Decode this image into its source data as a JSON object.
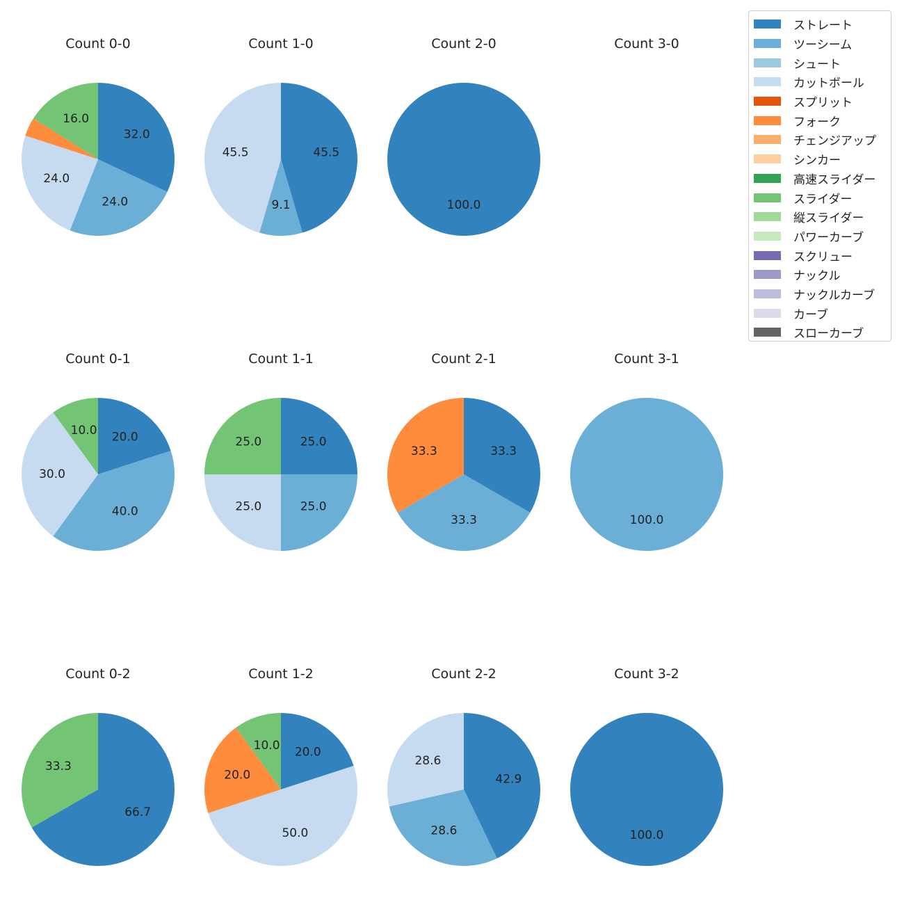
{
  "chart_data": {
    "type": "pie",
    "layout": "small multiples, 3 rows x 4 columns",
    "legend": [
      {
        "name": "ストレート",
        "color": "#3182bd"
      },
      {
        "name": "ツーシーム",
        "color": "#6baed6"
      },
      {
        "name": "シュート",
        "color": "#9ecae1"
      },
      {
        "name": "カットボール",
        "color": "#c6dbef"
      },
      {
        "name": "スプリット",
        "color": "#e6550d"
      },
      {
        "name": "フォーク",
        "color": "#fd8d3c"
      },
      {
        "name": "チェンジアップ",
        "color": "#fdae6b"
      },
      {
        "name": "シンカー",
        "color": "#fdd0a2"
      },
      {
        "name": "高速スライダー",
        "color": "#31a354"
      },
      {
        "name": "スライダー",
        "color": "#74c476"
      },
      {
        "name": "縦スライダー",
        "color": "#a1d99b"
      },
      {
        "name": "パワーカーブ",
        "color": "#c7e9c0"
      },
      {
        "name": "スクリュー",
        "color": "#756bb1"
      },
      {
        "name": "ナックル",
        "color": "#9e9ac8"
      },
      {
        "name": "ナックルカーブ",
        "color": "#bcbddc"
      },
      {
        "name": "カーブ",
        "color": "#dadaeb"
      },
      {
        "name": "スローカーブ",
        "color": "#636363"
      }
    ],
    "charts": [
      {
        "title": "Count 0-0",
        "slices": [
          {
            "label": "ストレート",
            "value": 32.0,
            "text": "32.0"
          },
          {
            "label": "ツーシーム",
            "value": 24.0,
            "text": "24.0"
          },
          {
            "label": "カットボール",
            "value": 24.0,
            "text": "24.0"
          },
          {
            "label": "フォーク",
            "value": 4.0,
            "text": ""
          },
          {
            "label": "スライダー",
            "value": 16.0,
            "text": "16.0"
          }
        ]
      },
      {
        "title": "Count 1-0",
        "slices": [
          {
            "label": "ストレート",
            "value": 45.5,
            "text": "45.5"
          },
          {
            "label": "ツーシーム",
            "value": 9.1,
            "text": "9.1"
          },
          {
            "label": "カットボール",
            "value": 45.5,
            "text": "45.5"
          }
        ]
      },
      {
        "title": "Count 2-0",
        "slices": [
          {
            "label": "ストレート",
            "value": 100.0,
            "text": "100.0"
          }
        ]
      },
      {
        "title": "Count 3-0",
        "slices": []
      },
      {
        "title": "Count 0-1",
        "slices": [
          {
            "label": "ストレート",
            "value": 20.0,
            "text": "20.0"
          },
          {
            "label": "ツーシーム",
            "value": 40.0,
            "text": "40.0"
          },
          {
            "label": "カットボール",
            "value": 30.0,
            "text": "30.0"
          },
          {
            "label": "スライダー",
            "value": 10.0,
            "text": "10.0"
          }
        ]
      },
      {
        "title": "Count 1-1",
        "slices": [
          {
            "label": "ストレート",
            "value": 25.0,
            "text": "25.0"
          },
          {
            "label": "ツーシーム",
            "value": 25.0,
            "text": "25.0"
          },
          {
            "label": "カットボール",
            "value": 25.0,
            "text": "25.0"
          },
          {
            "label": "スライダー",
            "value": 25.0,
            "text": "25.0"
          }
        ]
      },
      {
        "title": "Count 2-1",
        "slices": [
          {
            "label": "ストレート",
            "value": 33.3,
            "text": "33.3"
          },
          {
            "label": "ツーシーム",
            "value": 33.3,
            "text": "33.3"
          },
          {
            "label": "フォーク",
            "value": 33.3,
            "text": "33.3"
          }
        ]
      },
      {
        "title": "Count 3-1",
        "slices": [
          {
            "label": "ツーシーム",
            "value": 100.0,
            "text": "100.0"
          }
        ]
      },
      {
        "title": "Count 0-2",
        "slices": [
          {
            "label": "ストレート",
            "value": 66.7,
            "text": "66.7"
          },
          {
            "label": "スライダー",
            "value": 33.3,
            "text": "33.3"
          }
        ]
      },
      {
        "title": "Count 1-2",
        "slices": [
          {
            "label": "ストレート",
            "value": 20.0,
            "text": "20.0"
          },
          {
            "label": "カットボール",
            "value": 50.0,
            "text": "50.0"
          },
          {
            "label": "フォーク",
            "value": 20.0,
            "text": "20.0"
          },
          {
            "label": "スライダー",
            "value": 10.0,
            "text": "10.0"
          }
        ]
      },
      {
        "title": "Count 2-2",
        "slices": [
          {
            "label": "ストレート",
            "value": 42.9,
            "text": "42.9"
          },
          {
            "label": "ツーシーム",
            "value": 28.6,
            "text": "28.6"
          },
          {
            "label": "カットボール",
            "value": 28.6,
            "text": "28.6"
          }
        ]
      },
      {
        "title": "Count 3-2",
        "slices": [
          {
            "label": "ストレート",
            "value": 100.0,
            "text": "100.0"
          }
        ]
      }
    ]
  }
}
